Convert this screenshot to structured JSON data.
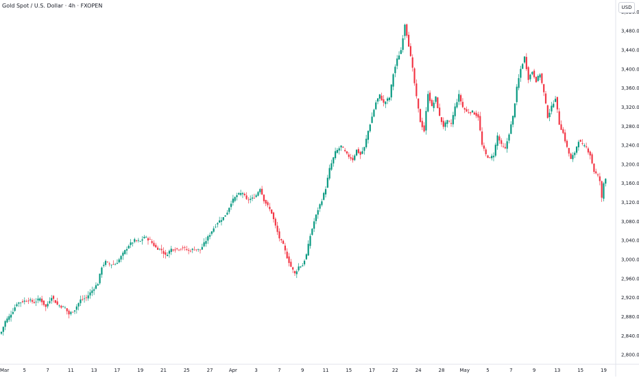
{
  "header": {
    "title": "Gold Spot / U.S. Dollar · 4h · FXOPEN",
    "currency": "USD"
  },
  "colors": {
    "up": "#089981",
    "down": "#f23645",
    "axis_text": "#131722",
    "axis_line": "#e0e3eb"
  },
  "chart_data": {
    "type": "candlestick",
    "title": "Gold Spot / U.S. Dollar · 4h · FXOPEN",
    "ylim": [
      2780,
      3545
    ],
    "y_ticks": [
      2800,
      2840,
      2880,
      2920,
      2960,
      3000,
      3040,
      3080,
      3120,
      3160,
      3200,
      3240,
      3280,
      3320,
      3360,
      3400,
      3440,
      3480,
      3520
    ],
    "y_tick_labels": [
      "2,800.00",
      "2,840.00",
      "2,880.00",
      "2,920.00",
      "2,960.00",
      "3,000.00",
      "3,040.00",
      "3,080.00",
      "3,120.00",
      "3,160.00",
      "3,200.00",
      "3,240.00",
      "3,280.00",
      "3,320.00",
      "3,360.00",
      "3,400.00",
      "3,440.00",
      "3,480.00",
      "3,520.00"
    ],
    "x_tick_labels": [
      "Mar",
      "5",
      "7",
      "11",
      "13",
      "17",
      "19",
      "21",
      "25",
      "27",
      "Apr",
      "3",
      "7",
      "9",
      "11",
      "15",
      "17",
      "22",
      "24",
      "28",
      "May",
      "5",
      "7",
      "9",
      "13",
      "15",
      "19"
    ],
    "x_tick_index": [
      0,
      12,
      24,
      36,
      48,
      60,
      72,
      84,
      96,
      108,
      120,
      132,
      144,
      156,
      168,
      180,
      192,
      204,
      216,
      228,
      240,
      252,
      264,
      276,
      288,
      300,
      312
    ],
    "x_range": [
      0,
      320
    ],
    "anchors": [
      [
        0,
        2848
      ],
      [
        2,
        2870
      ],
      [
        4,
        2880
      ],
      [
        6,
        2892
      ],
      [
        8,
        2908
      ],
      [
        11,
        2912
      ],
      [
        14,
        2915
      ],
      [
        17,
        2910
      ],
      [
        20,
        2918
      ],
      [
        23,
        2900
      ],
      [
        26,
        2922
      ],
      [
        29,
        2905
      ],
      [
        33,
        2898
      ],
      [
        35,
        2885
      ],
      [
        38,
        2895
      ],
      [
        41,
        2915
      ],
      [
        44,
        2920
      ],
      [
        47,
        2935
      ],
      [
        50,
        2950
      ],
      [
        52,
        2985
      ],
      [
        54,
        2995
      ],
      [
        56,
        2990
      ],
      [
        59,
        2990
      ],
      [
        61,
        3000
      ],
      [
        63,
        3012
      ],
      [
        66,
        3030
      ],
      [
        69,
        3040
      ],
      [
        72,
        3038
      ],
      [
        74,
        3048
      ],
      [
        77,
        3040
      ],
      [
        80,
        3025
      ],
      [
        83,
        3020
      ],
      [
        85,
        3008
      ],
      [
        88,
        3022
      ],
      [
        91,
        3022
      ],
      [
        94,
        3025
      ],
      [
        97,
        3018
      ],
      [
        100,
        3022
      ],
      [
        103,
        3020
      ],
      [
        106,
        3040
      ],
      [
        109,
        3060
      ],
      [
        112,
        3078
      ],
      [
        115,
        3088
      ],
      [
        117,
        3100
      ],
      [
        119,
        3120
      ],
      [
        122,
        3135
      ],
      [
        125,
        3140
      ],
      [
        127,
        3125
      ],
      [
        130,
        3128
      ],
      [
        132,
        3135
      ],
      [
        134,
        3150
      ],
      [
        136,
        3125
      ],
      [
        138,
        3112
      ],
      [
        140,
        3098
      ],
      [
        142,
        3070
      ],
      [
        144,
        3045
      ],
      [
        146,
        3030
      ],
      [
        148,
        3005
      ],
      [
        150,
        2985
      ],
      [
        152,
        2970
      ],
      [
        154,
        2985
      ],
      [
        156,
        2988
      ],
      [
        158,
        3010
      ],
      [
        160,
        3050
      ],
      [
        162,
        3080
      ],
      [
        164,
        3105
      ],
      [
        166,
        3125
      ],
      [
        168,
        3150
      ],
      [
        170,
        3190
      ],
      [
        173,
        3225
      ],
      [
        176,
        3238
      ],
      [
        179,
        3220
      ],
      [
        182,
        3210
      ],
      [
        184,
        3230
      ],
      [
        186,
        3220
      ],
      [
        188,
        3235
      ],
      [
        190,
        3270
      ],
      [
        192,
        3300
      ],
      [
        194,
        3330
      ],
      [
        196,
        3345
      ],
      [
        198,
        3328
      ],
      [
        201,
        3340
      ],
      [
        203,
        3390
      ],
      [
        205,
        3420
      ],
      [
        207,
        3440
      ],
      [
        209,
        3495
      ],
      [
        211,
        3450
      ],
      [
        213,
        3400
      ],
      [
        215,
        3340
      ],
      [
        217,
        3290
      ],
      [
        219,
        3270
      ],
      [
        221,
        3350
      ],
      [
        223,
        3320
      ],
      [
        225,
        3340
      ],
      [
        227,
        3300
      ],
      [
        229,
        3280
      ],
      [
        231,
        3290
      ],
      [
        233,
        3285
      ],
      [
        235,
        3320
      ],
      [
        237,
        3345
      ],
      [
        239,
        3320
      ],
      [
        241,
        3310
      ],
      [
        244,
        3310
      ],
      [
        247,
        3300
      ],
      [
        249,
        3240
      ],
      [
        251,
        3220
      ],
      [
        253,
        3212
      ],
      [
        255,
        3220
      ],
      [
        257,
        3260
      ],
      [
        259,
        3240
      ],
      [
        261,
        3232
      ],
      [
        263,
        3265
      ],
      [
        265,
        3300
      ],
      [
        267,
        3360
      ],
      [
        269,
        3400
      ],
      [
        271,
        3425
      ],
      [
        273,
        3380
      ],
      [
        275,
        3395
      ],
      [
        277,
        3375
      ],
      [
        279,
        3390
      ],
      [
        281,
        3350
      ],
      [
        283,
        3300
      ],
      [
        285,
        3320
      ],
      [
        287,
        3340
      ],
      [
        289,
        3285
      ],
      [
        291,
        3265
      ],
      [
        293,
        3235
      ],
      [
        295,
        3210
      ],
      [
        297,
        3225
      ],
      [
        299,
        3250
      ],
      [
        301,
        3240
      ],
      [
        303,
        3235
      ],
      [
        305,
        3220
      ],
      [
        307,
        3185
      ],
      [
        309,
        3175
      ],
      [
        310,
        3165
      ],
      [
        311,
        3128
      ],
      [
        312,
        3160
      ],
      [
        313,
        3172
      ]
    ]
  }
}
